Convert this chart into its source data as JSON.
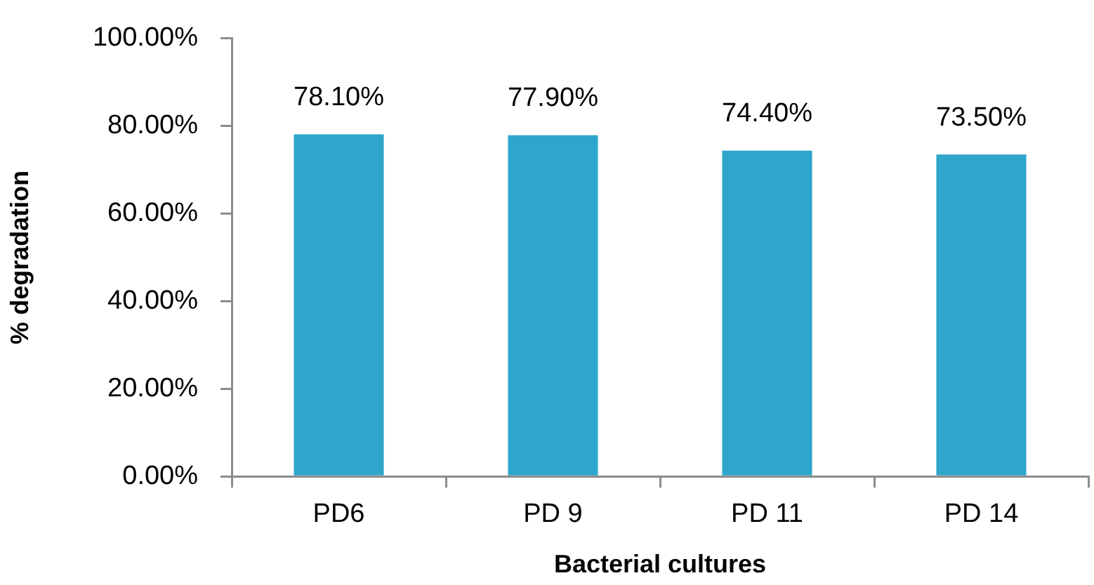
{
  "chart_data": {
    "type": "bar",
    "xlabel": "Bacterial cultures",
    "ylabel": "% degradation",
    "categories": [
      "PD6",
      "PD 9",
      "PD 11",
      "PD 14"
    ],
    "values": [
      78.1,
      77.9,
      74.4,
      73.5
    ],
    "color": "#2ea6cb",
    "value_labels": [
      "78.10%",
      "77.90%",
      "74.40%",
      "73.50%"
    ],
    "ylim": [
      0,
      100
    ],
    "yticks": [
      {
        "value": 0,
        "label": "0.00%"
      },
      {
        "value": 20,
        "label": "20.00%"
      },
      {
        "value": 40,
        "label": "40.00%"
      },
      {
        "value": 60,
        "label": "60.00%"
      },
      {
        "value": 80,
        "label": "80.00%"
      },
      {
        "value": 100,
        "label": "100.00%"
      }
    ]
  }
}
